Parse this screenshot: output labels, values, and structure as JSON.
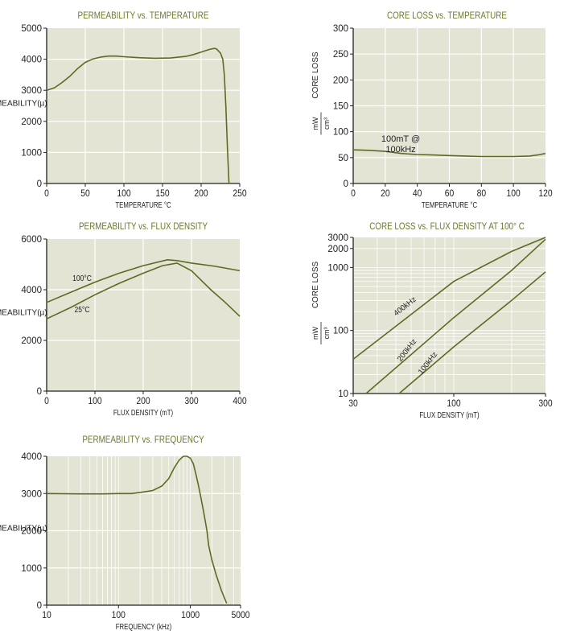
{
  "chart_data": [
    {
      "type": "line",
      "title": "PERMEABILITY vs. TEMPERATURE",
      "xlabel": "TEMPERATURE °C",
      "ylabel": "PERMEABILITY(µ)",
      "xlim": [
        0,
        250
      ],
      "ylim": [
        0,
        5000
      ],
      "xticks": [
        0,
        50,
        100,
        150,
        200,
        250
      ],
      "yticks": [
        0,
        1000,
        2000,
        3000,
        4000,
        5000
      ],
      "grid": true,
      "series": [
        {
          "points": [
            [
              0,
              3000
            ],
            [
              10,
              3080
            ],
            [
              20,
              3250
            ],
            [
              30,
              3450
            ],
            [
              40,
              3700
            ],
            [
              50,
              3900
            ],
            [
              60,
              4010
            ],
            [
              70,
              4070
            ],
            [
              80,
              4100
            ],
            [
              90,
              4100
            ],
            [
              100,
              4080
            ],
            [
              120,
              4050
            ],
            [
              140,
              4030
            ],
            [
              160,
              4040
            ],
            [
              180,
              4090
            ],
            [
              190,
              4150
            ],
            [
              200,
              4230
            ],
            [
              210,
              4310
            ],
            [
              217,
              4350
            ],
            [
              220,
              4330
            ],
            [
              225,
              4200
            ],
            [
              228,
              4000
            ],
            [
              230,
              3500
            ],
            [
              232,
              2500
            ],
            [
              234,
              1200
            ],
            [
              236,
              0
            ]
          ]
        }
      ]
    },
    {
      "type": "line",
      "title": "CORE LOSS vs. TEMPERATURE",
      "xlabel": "TEMPERATURE °C",
      "ylabel": "CORE LOSS",
      "yunit_num": "mW",
      "yunit_den": "cm³",
      "xlim": [
        0,
        120
      ],
      "ylim": [
        0,
        300
      ],
      "xticks": [
        0,
        20,
        40,
        60,
        80,
        100,
        120
      ],
      "yticks": [
        0,
        50,
        100,
        150,
        200,
        250,
        300
      ],
      "grid": true,
      "annotation": [
        "100mT @",
        "100kHz"
      ],
      "series": [
        {
          "points": [
            [
              0,
              65
            ],
            [
              10,
              64
            ],
            [
              20,
              62
            ],
            [
              30,
              58
            ],
            [
              40,
              56
            ],
            [
              50,
              55
            ],
            [
              60,
              54
            ],
            [
              70,
              53
            ],
            [
              80,
              52
            ],
            [
              90,
              52
            ],
            [
              100,
              52
            ],
            [
              110,
              53
            ],
            [
              115,
              55
            ],
            [
              120,
              58
            ]
          ]
        }
      ]
    },
    {
      "type": "line",
      "title": "PERMEABILITY vs. FLUX DENSITY",
      "xlabel": "FLUX DENSITY (mT)",
      "ylabel": "PERMEABILITY(µ)",
      "xlim": [
        0,
        400
      ],
      "ylim": [
        0,
        6000
      ],
      "xticks": [
        0,
        100,
        200,
        300,
        400
      ],
      "yticks": [
        0,
        2000,
        4000,
        6000
      ],
      "grid": true,
      "series": [
        {
          "name": "100°C",
          "points": [
            [
              0,
              3500
            ],
            [
              50,
              3900
            ],
            [
              100,
              4300
            ],
            [
              150,
              4650
            ],
            [
              200,
              4950
            ],
            [
              250,
              5180
            ],
            [
              270,
              5150
            ],
            [
              300,
              5050
            ],
            [
              350,
              4920
            ],
            [
              400,
              4750
            ]
          ]
        },
        {
          "name": "25°C",
          "points": [
            [
              0,
              2850
            ],
            [
              50,
              3300
            ],
            [
              100,
              3800
            ],
            [
              150,
              4250
            ],
            [
              200,
              4650
            ],
            [
              240,
              4950
            ],
            [
              270,
              5050
            ],
            [
              300,
              4750
            ],
            [
              340,
              4000
            ],
            [
              370,
              3500
            ],
            [
              400,
              2950
            ]
          ]
        }
      ]
    },
    {
      "type": "line",
      "title": "CORE LOSS vs. FLUX DENSITY AT 100° C",
      "xlabel": "FLUX DENSITY (mT)",
      "ylabel": "CORE LOSS",
      "yunit_num": "mW",
      "yunit_den": "cm³",
      "xscale": "log",
      "yscale": "log",
      "xlim": [
        30,
        300
      ],
      "ylim": [
        10,
        3000
      ],
      "xticks": [
        30,
        100,
        300
      ],
      "yticks": [
        10,
        100,
        1000,
        2000,
        3000
      ],
      "grid": true,
      "series": [
        {
          "name": "400kHz",
          "points": [
            [
              30,
              35
            ],
            [
              100,
              600
            ],
            [
              200,
              1800
            ],
            [
              300,
              3000
            ]
          ]
        },
        {
          "name": "200kHz",
          "points": [
            [
              35,
              10
            ],
            [
              100,
              160
            ],
            [
              200,
              900
            ],
            [
              300,
              2800
            ]
          ]
        },
        {
          "name": "100kHz",
          "points": [
            [
              52,
              10
            ],
            [
              100,
              55
            ],
            [
              200,
              300
            ],
            [
              300,
              850
            ]
          ]
        }
      ]
    },
    {
      "type": "line",
      "title": "PERMEABILITY vs. FREQUENCY",
      "xlabel": "FREQUENCY (kHz)",
      "ylabel": "PERMEABILITY(µ)",
      "xscale": "log",
      "xlim": [
        10,
        5000
      ],
      "ylim": [
        0,
        4000
      ],
      "xticks": [
        10,
        100,
        1000,
        5000
      ],
      "yticks": [
        0,
        1000,
        2000,
        3000,
        4000
      ],
      "grid": true,
      "series": [
        {
          "points": [
            [
              10,
              3000
            ],
            [
              30,
              2990
            ],
            [
              60,
              2990
            ],
            [
              100,
              3000
            ],
            [
              150,
              3000
            ],
            [
              200,
              3030
            ],
            [
              300,
              3080
            ],
            [
              400,
              3200
            ],
            [
              500,
              3400
            ],
            [
              600,
              3700
            ],
            [
              700,
              3900
            ],
            [
              800,
              4000
            ],
            [
              900,
              4000
            ],
            [
              1000,
              3950
            ],
            [
              1100,
              3800
            ],
            [
              1200,
              3500
            ],
            [
              1300,
              3200
            ],
            [
              1400,
              2900
            ],
            [
              1500,
              2600
            ],
            [
              1600,
              2300
            ],
            [
              1700,
              2000
            ],
            [
              1800,
              1600
            ],
            [
              2000,
              1200
            ],
            [
              2300,
              800
            ],
            [
              2700,
              400
            ],
            [
              3200,
              50
            ]
          ]
        }
      ]
    }
  ]
}
